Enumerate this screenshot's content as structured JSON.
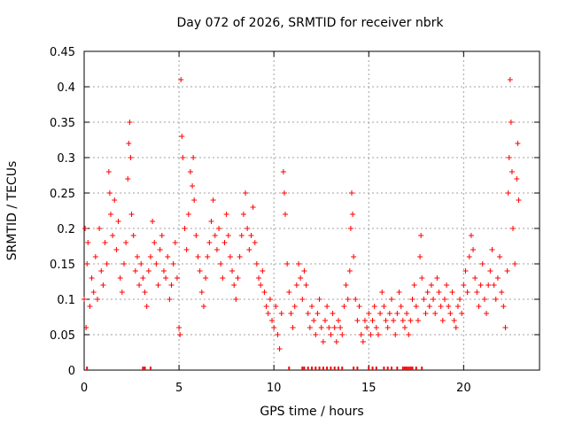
{
  "chart_data": {
    "type": "scatter",
    "title": "Day 072 of 2026, SRMTID for receiver nbrk",
    "xlabel": "GPS time / hours",
    "ylabel": "SRMTID / TECUs",
    "xlim": [
      0,
      24
    ],
    "ylim": [
      0,
      0.45
    ],
    "x_ticks": [
      0,
      5,
      10,
      15,
      20
    ],
    "x_tick_labels": [
      "0",
      "5",
      "10",
      "15",
      "20"
    ],
    "y_ticks": [
      0,
      0.05,
      0.1,
      0.15,
      0.2,
      0.25,
      0.3,
      0.35,
      0.4,
      0.45
    ],
    "y_tick_labels": [
      "0",
      "0.05",
      "0.1",
      "0.15",
      "0.2",
      "0.25",
      "0.3",
      "0.35",
      "0.4",
      "0.45"
    ],
    "grid": true,
    "marker": "plus",
    "color": "#ff0000",
    "baseline_hours": [
      0.15,
      3.1,
      3.2,
      3.5,
      10.8,
      11.5,
      11.6,
      11.8,
      12.0,
      12.2,
      12.4,
      12.6,
      12.8,
      13.0,
      13.2,
      13.4,
      13.6,
      14.2,
      14.4,
      15.0,
      15.2,
      15.4,
      15.8,
      16.0,
      16.2,
      16.5,
      16.8,
      16.9,
      17.0,
      17.1,
      17.2,
      17.3,
      17.5,
      17.8
    ],
    "series": [
      {
        "name": "SRMTID",
        "points": [
          [
            0.0,
            0.1
          ],
          [
            0.05,
            0.2
          ],
          [
            0.1,
            0.06
          ],
          [
            0.15,
            0.15
          ],
          [
            0.2,
            0.18
          ],
          [
            0.3,
            0.09
          ],
          [
            0.4,
            0.13
          ],
          [
            0.5,
            0.11
          ],
          [
            0.6,
            0.16
          ],
          [
            0.7,
            0.1
          ],
          [
            0.8,
            0.2
          ],
          [
            0.9,
            0.14
          ],
          [
            1.0,
            0.12
          ],
          [
            1.1,
            0.18
          ],
          [
            1.2,
            0.15
          ],
          [
            1.3,
            0.28
          ],
          [
            1.35,
            0.25
          ],
          [
            1.4,
            0.22
          ],
          [
            1.5,
            0.19
          ],
          [
            1.6,
            0.24
          ],
          [
            1.7,
            0.17
          ],
          [
            1.8,
            0.21
          ],
          [
            1.9,
            0.13
          ],
          [
            2.0,
            0.11
          ],
          [
            2.1,
            0.15
          ],
          [
            2.2,
            0.18
          ],
          [
            2.3,
            0.27
          ],
          [
            2.35,
            0.32
          ],
          [
            2.4,
            0.35
          ],
          [
            2.45,
            0.3
          ],
          [
            2.5,
            0.22
          ],
          [
            2.6,
            0.19
          ],
          [
            2.7,
            0.14
          ],
          [
            2.8,
            0.16
          ],
          [
            2.9,
            0.12
          ],
          [
            3.0,
            0.15
          ],
          [
            3.1,
            0.13
          ],
          [
            3.2,
            0.11
          ],
          [
            3.3,
            0.09
          ],
          [
            3.4,
            0.14
          ],
          [
            3.5,
            0.16
          ],
          [
            3.6,
            0.21
          ],
          [
            3.7,
            0.18
          ],
          [
            3.8,
            0.15
          ],
          [
            3.9,
            0.12
          ],
          [
            4.0,
            0.17
          ],
          [
            4.1,
            0.19
          ],
          [
            4.2,
            0.14
          ],
          [
            4.3,
            0.13
          ],
          [
            4.4,
            0.16
          ],
          [
            4.5,
            0.1
          ],
          [
            4.6,
            0.12
          ],
          [
            4.7,
            0.15
          ],
          [
            4.8,
            0.18
          ],
          [
            4.9,
            0.13
          ],
          [
            5.0,
            0.06
          ],
          [
            5.05,
            0.05
          ],
          [
            5.1,
            0.41
          ],
          [
            5.15,
            0.33
          ],
          [
            5.2,
            0.3
          ],
          [
            5.3,
            0.2
          ],
          [
            5.4,
            0.17
          ],
          [
            5.5,
            0.22
          ],
          [
            5.6,
            0.28
          ],
          [
            5.7,
            0.26
          ],
          [
            5.75,
            0.3
          ],
          [
            5.8,
            0.24
          ],
          [
            5.9,
            0.19
          ],
          [
            6.0,
            0.16
          ],
          [
            6.1,
            0.14
          ],
          [
            6.2,
            0.11
          ],
          [
            6.3,
            0.09
          ],
          [
            6.4,
            0.13
          ],
          [
            6.5,
            0.16
          ],
          [
            6.6,
            0.18
          ],
          [
            6.7,
            0.21
          ],
          [
            6.8,
            0.24
          ],
          [
            6.9,
            0.19
          ],
          [
            7.0,
            0.17
          ],
          [
            7.1,
            0.2
          ],
          [
            7.2,
            0.15
          ],
          [
            7.3,
            0.13
          ],
          [
            7.4,
            0.18
          ],
          [
            7.5,
            0.22
          ],
          [
            7.6,
            0.19
          ],
          [
            7.7,
            0.16
          ],
          [
            7.8,
            0.14
          ],
          [
            7.9,
            0.12
          ],
          [
            8.0,
            0.1
          ],
          [
            8.1,
            0.13
          ],
          [
            8.2,
            0.16
          ],
          [
            8.3,
            0.19
          ],
          [
            8.4,
            0.22
          ],
          [
            8.5,
            0.25
          ],
          [
            8.6,
            0.2
          ],
          [
            8.7,
            0.17
          ],
          [
            8.8,
            0.19
          ],
          [
            8.9,
            0.23
          ],
          [
            9.0,
            0.18
          ],
          [
            9.1,
            0.15
          ],
          [
            9.2,
            0.13
          ],
          [
            9.3,
            0.12
          ],
          [
            9.4,
            0.14
          ],
          [
            9.5,
            0.11
          ],
          [
            9.6,
            0.09
          ],
          [
            9.7,
            0.08
          ],
          [
            9.8,
            0.1
          ],
          [
            9.9,
            0.07
          ],
          [
            10.0,
            0.06
          ],
          [
            10.1,
            0.09
          ],
          [
            10.2,
            0.05
          ],
          [
            10.3,
            0.03
          ],
          [
            10.4,
            0.08
          ],
          [
            10.5,
            0.28
          ],
          [
            10.55,
            0.25
          ],
          [
            10.6,
            0.22
          ],
          [
            10.7,
            0.15
          ],
          [
            10.8,
            0.11
          ],
          [
            10.9,
            0.08
          ],
          [
            11.0,
            0.06
          ],
          [
            11.1,
            0.09
          ],
          [
            11.2,
            0.12
          ],
          [
            11.3,
            0.15
          ],
          [
            11.4,
            0.13
          ],
          [
            11.5,
            0.1
          ],
          [
            11.6,
            0.14
          ],
          [
            11.7,
            0.12
          ],
          [
            11.8,
            0.08
          ],
          [
            11.9,
            0.06
          ],
          [
            12.0,
            0.09
          ],
          [
            12.1,
            0.07
          ],
          [
            12.2,
            0.05
          ],
          [
            12.3,
            0.08
          ],
          [
            12.4,
            0.1
          ],
          [
            12.5,
            0.06
          ],
          [
            12.6,
            0.04
          ],
          [
            12.7,
            0.07
          ],
          [
            12.8,
            0.09
          ],
          [
            12.9,
            0.06
          ],
          [
            13.0,
            0.05
          ],
          [
            13.1,
            0.08
          ],
          [
            13.2,
            0.06
          ],
          [
            13.3,
            0.04
          ],
          [
            13.4,
            0.07
          ],
          [
            13.5,
            0.06
          ],
          [
            13.6,
            0.05
          ],
          [
            13.7,
            0.09
          ],
          [
            13.8,
            0.12
          ],
          [
            13.9,
            0.1
          ],
          [
            14.0,
            0.14
          ],
          [
            14.05,
            0.2
          ],
          [
            14.1,
            0.25
          ],
          [
            14.15,
            0.22
          ],
          [
            14.2,
            0.16
          ],
          [
            14.3,
            0.1
          ],
          [
            14.4,
            0.07
          ],
          [
            14.5,
            0.09
          ],
          [
            14.6,
            0.05
          ],
          [
            14.7,
            0.04
          ],
          [
            14.8,
            0.07
          ],
          [
            14.9,
            0.06
          ],
          [
            15.0,
            0.08
          ],
          [
            15.1,
            0.05
          ],
          [
            15.2,
            0.07
          ],
          [
            15.3,
            0.09
          ],
          [
            15.4,
            0.06
          ],
          [
            15.5,
            0.05
          ],
          [
            15.6,
            0.08
          ],
          [
            15.7,
            0.11
          ],
          [
            15.8,
            0.09
          ],
          [
            15.9,
            0.07
          ],
          [
            16.0,
            0.06
          ],
          [
            16.1,
            0.08
          ],
          [
            16.2,
            0.1
          ],
          [
            16.3,
            0.07
          ],
          [
            16.4,
            0.05
          ],
          [
            16.5,
            0.08
          ],
          [
            16.6,
            0.11
          ],
          [
            16.7,
            0.09
          ],
          [
            16.8,
            0.07
          ],
          [
            16.9,
            0.06
          ],
          [
            17.0,
            0.08
          ],
          [
            17.1,
            0.05
          ],
          [
            17.2,
            0.07
          ],
          [
            17.3,
            0.1
          ],
          [
            17.4,
            0.12
          ],
          [
            17.5,
            0.09
          ],
          [
            17.6,
            0.07
          ],
          [
            17.7,
            0.16
          ],
          [
            17.75,
            0.19
          ],
          [
            17.8,
            0.13
          ],
          [
            17.9,
            0.1
          ],
          [
            18.0,
            0.08
          ],
          [
            18.1,
            0.11
          ],
          [
            18.2,
            0.09
          ],
          [
            18.3,
            0.12
          ],
          [
            18.4,
            0.1
          ],
          [
            18.5,
            0.08
          ],
          [
            18.6,
            0.13
          ],
          [
            18.7,
            0.11
          ],
          [
            18.8,
            0.09
          ],
          [
            18.9,
            0.07
          ],
          [
            19.0,
            0.1
          ],
          [
            19.1,
            0.12
          ],
          [
            19.2,
            0.09
          ],
          [
            19.3,
            0.08
          ],
          [
            19.4,
            0.11
          ],
          [
            19.5,
            0.07
          ],
          [
            19.6,
            0.06
          ],
          [
            19.7,
            0.09
          ],
          [
            19.8,
            0.1
          ],
          [
            19.9,
            0.08
          ],
          [
            20.0,
            0.12
          ],
          [
            20.1,
            0.14
          ],
          [
            20.2,
            0.11
          ],
          [
            20.3,
            0.16
          ],
          [
            20.4,
            0.19
          ],
          [
            20.5,
            0.17
          ],
          [
            20.6,
            0.13
          ],
          [
            20.7,
            0.11
          ],
          [
            20.8,
            0.09
          ],
          [
            20.9,
            0.12
          ],
          [
            21.0,
            0.15
          ],
          [
            21.1,
            0.1
          ],
          [
            21.2,
            0.08
          ],
          [
            21.3,
            0.12
          ],
          [
            21.4,
            0.14
          ],
          [
            21.5,
            0.17
          ],
          [
            21.6,
            0.12
          ],
          [
            21.7,
            0.1
          ],
          [
            21.8,
            0.13
          ],
          [
            21.9,
            0.16
          ],
          [
            22.0,
            0.11
          ],
          [
            22.1,
            0.09
          ],
          [
            22.2,
            0.06
          ],
          [
            22.3,
            0.14
          ],
          [
            22.35,
            0.25
          ],
          [
            22.4,
            0.3
          ],
          [
            22.45,
            0.41
          ],
          [
            22.5,
            0.35
          ],
          [
            22.55,
            0.28
          ],
          [
            22.6,
            0.2
          ],
          [
            22.7,
            0.15
          ],
          [
            22.8,
            0.27
          ],
          [
            22.85,
            0.32
          ],
          [
            22.9,
            0.24
          ]
        ]
      }
    ]
  }
}
